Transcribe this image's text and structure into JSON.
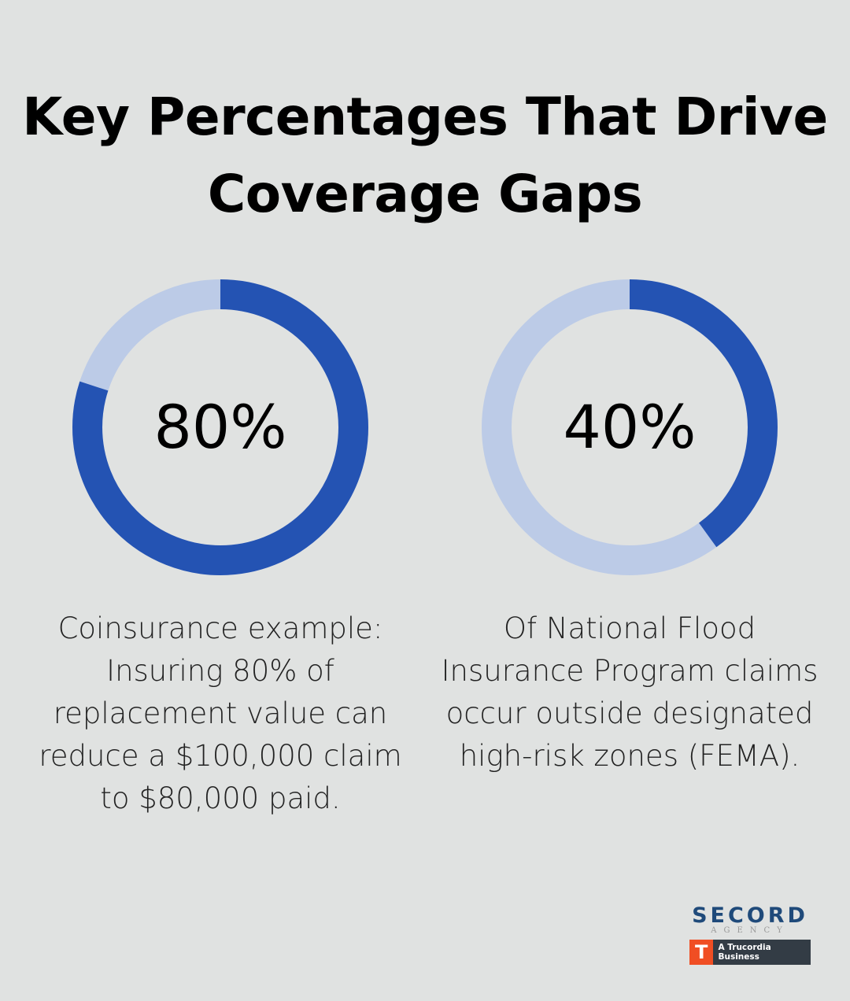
{
  "title": "Key Percentages That Drive Coverage Gaps",
  "colors": {
    "filled": "#2453b3",
    "remaining": "#bccbe7",
    "background": "#e0e2e1"
  },
  "chart_data": [
    {
      "type": "pie",
      "subtype": "donut",
      "value": 80,
      "label": "80%",
      "caption": "Coinsurance example: Insuring 80% of replacement value can reduce a $100,000 claim to $80,000 paid."
    },
    {
      "type": "pie",
      "subtype": "donut",
      "value": 40,
      "label": "40%",
      "caption": "Of National Flood Insurance Program claims occur outside designated high-risk zones (FEMA)."
    }
  ],
  "logo": {
    "name": "SECORD",
    "sub": "AGENCY",
    "badge": "A Trucordia Business"
  }
}
